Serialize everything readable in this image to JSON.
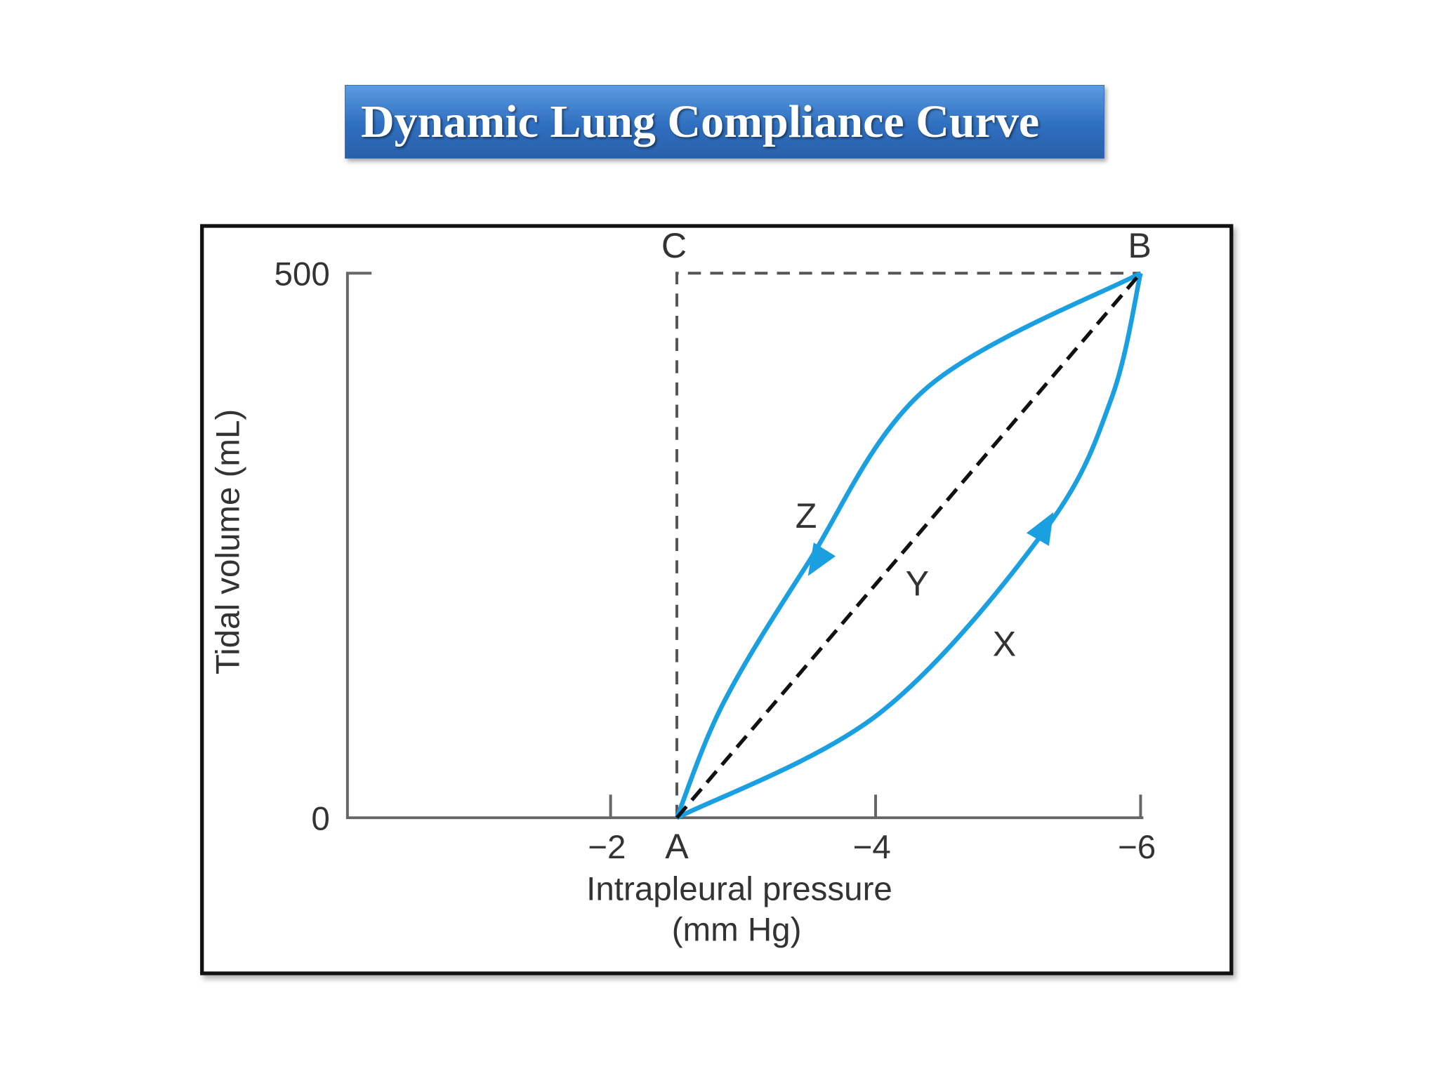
{
  "title": "Dynamic Lung Compliance Curve",
  "chart_data": {
    "type": "line",
    "xlabel": "Intrapleural pressure",
    "xlabel_unit": "(mm Hg)",
    "ylabel": "Tidal volume (mL)",
    "xlim": [
      0,
      -6
    ],
    "ylim": [
      0,
      500
    ],
    "x_ticks": [
      {
        "value": -2,
        "label": "−2"
      },
      {
        "value": -4,
        "label": "−4"
      },
      {
        "value": -6,
        "label": "−6"
      }
    ],
    "y_ticks": [
      {
        "value": 0,
        "label": "0"
      },
      {
        "value": 500,
        "label": "500"
      }
    ],
    "points": {
      "A": {
        "label": "A",
        "x": -2.5,
        "y": 0
      },
      "B": {
        "label": "B",
        "x": -6,
        "y": 500
      },
      "C": {
        "label": "C",
        "x": -2.5,
        "y": 500
      }
    },
    "series": [
      {
        "name": "Z",
        "style": "solid",
        "color": "#1aa0e0",
        "direction": "B to A",
        "points": [
          [
            -6,
            500
          ],
          [
            -4.38,
            394
          ],
          [
            -3.48,
            232
          ],
          [
            -2.85,
            105
          ],
          [
            -2.5,
            0
          ]
        ]
      },
      {
        "name": "X",
        "style": "solid",
        "color": "#1aa0e0",
        "direction": "A to B",
        "points": [
          [
            -2.5,
            0
          ],
          [
            -4.03,
            96
          ],
          [
            -5.29,
            266
          ],
          [
            -5.78,
            385
          ],
          [
            -6,
            500
          ]
        ]
      },
      {
        "name": "Y",
        "style": "dashed",
        "color": "#111111",
        "points": [
          [
            -2.5,
            0
          ],
          [
            -6,
            500
          ]
        ]
      }
    ],
    "guides": [
      {
        "style": "dashed",
        "points": [
          [
            -2.5,
            0
          ],
          [
            -2.5,
            500
          ],
          [
            -6,
            500
          ]
        ]
      }
    ],
    "grid": false,
    "legend": "none"
  }
}
